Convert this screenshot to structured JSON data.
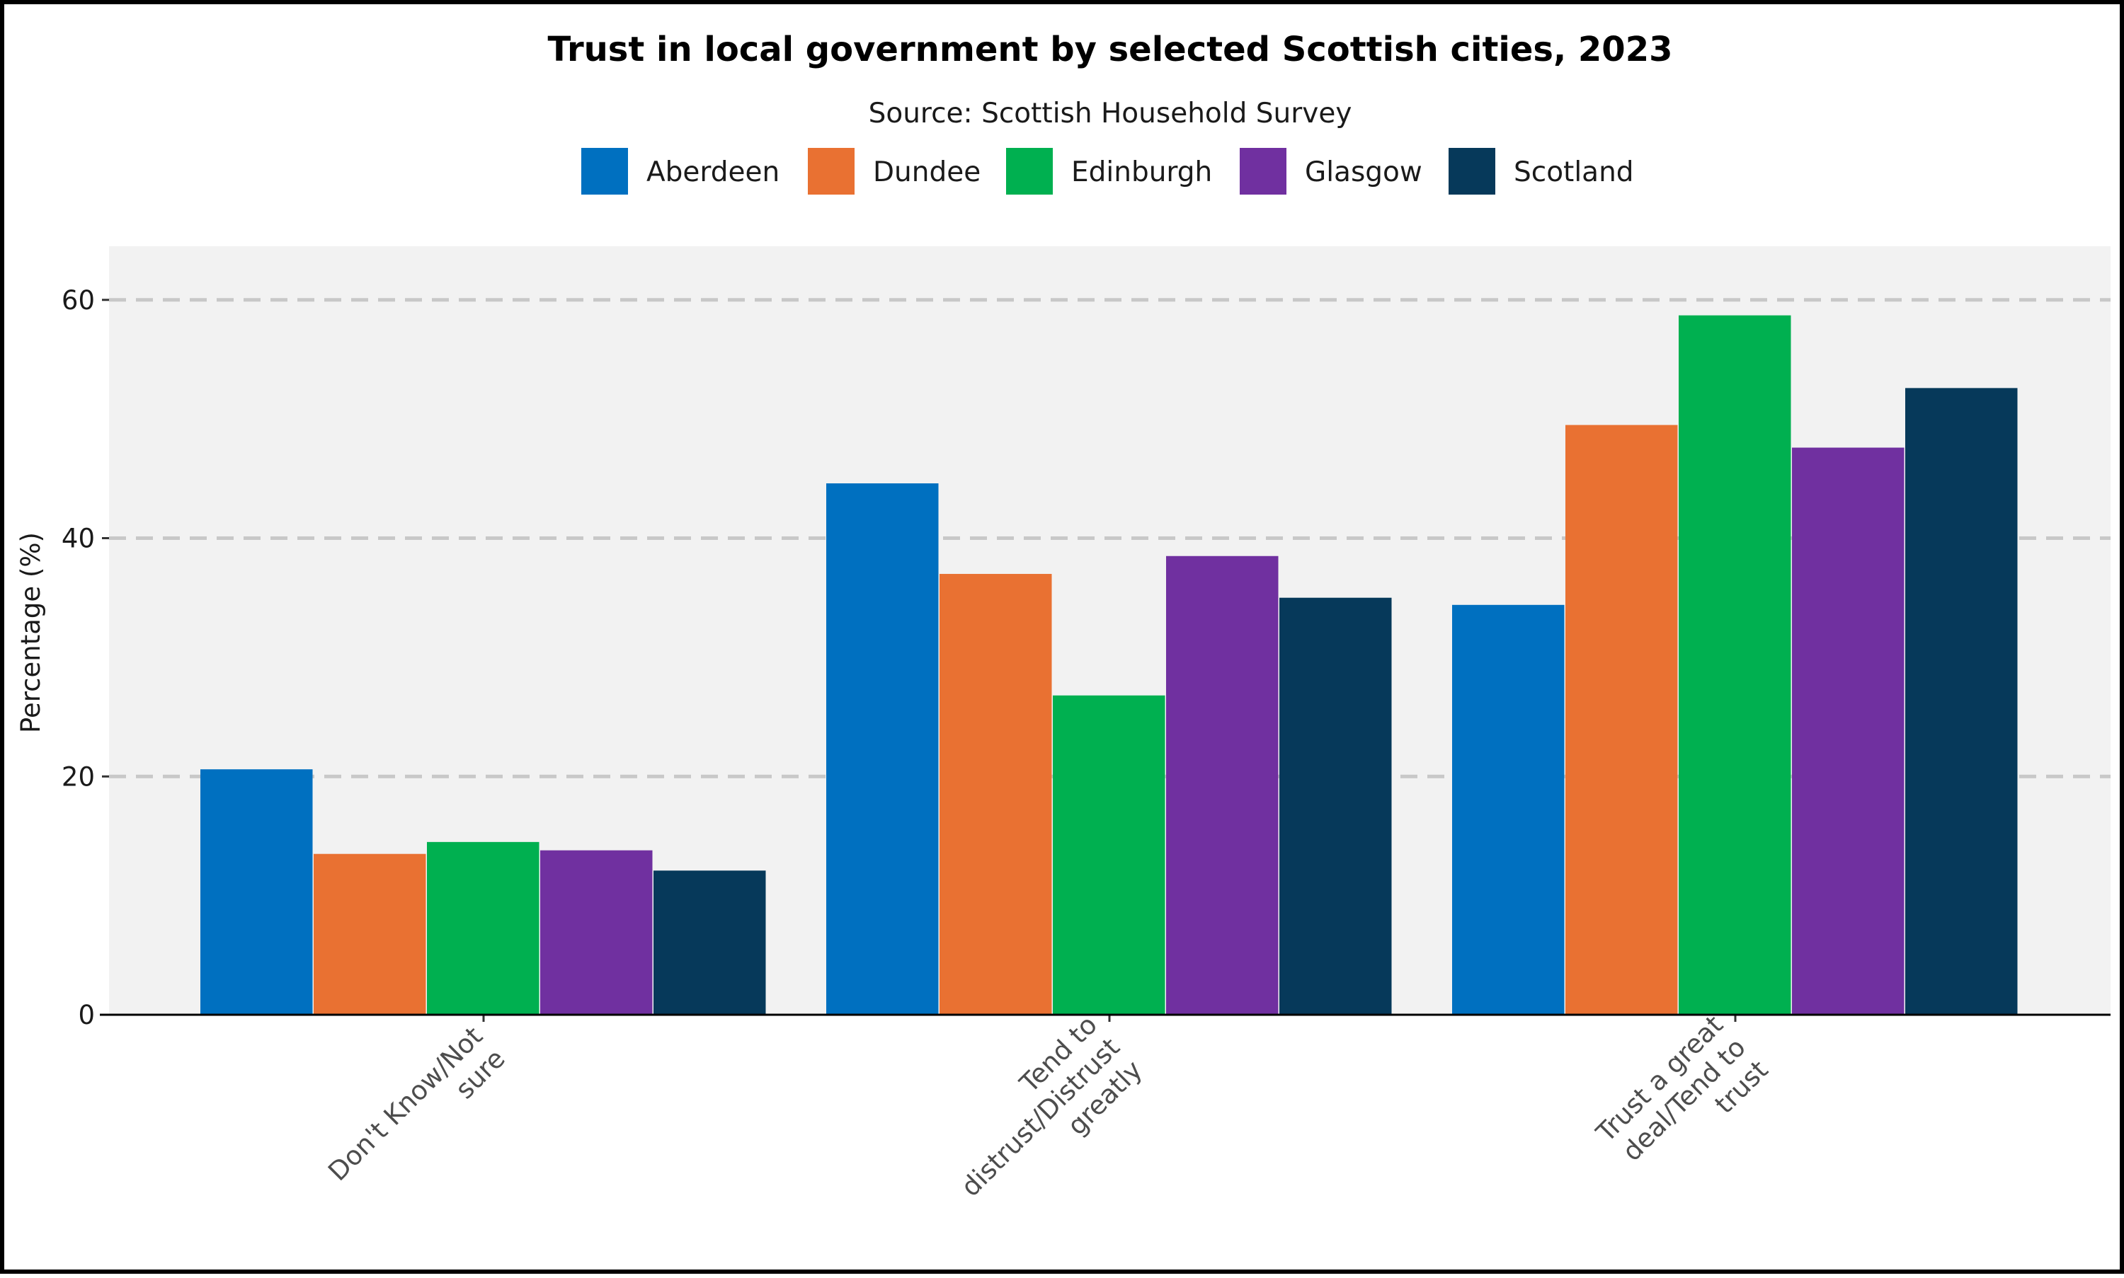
{
  "chart_data": {
    "type": "bar",
    "title": "Trust in local government by selected Scottish cities, 2023",
    "subtitle": "Source: Scottish Household Survey",
    "xlabel": "",
    "ylabel": "Percentage (%)",
    "ylim": [
      0,
      64.5
    ],
    "yticks": [
      0,
      20,
      40,
      60
    ],
    "grid": "horizontal dashed",
    "legend_position": "top",
    "categories": [
      [
        "Don't Know/Not",
        "sure"
      ],
      [
        "Tend to",
        "distrust/Distrust",
        "greatly"
      ],
      [
        "Trust a great",
        "deal/Tend to",
        "trust"
      ]
    ],
    "series": [
      {
        "name": "Aberdeen",
        "color": "#0070C0",
        "values": [
          20.6,
          44.6,
          34.4
        ]
      },
      {
        "name": "Dundee",
        "color": "#E97132",
        "values": [
          13.5,
          37.0,
          49.5
        ]
      },
      {
        "name": "Edinburgh",
        "color": "#00B050",
        "values": [
          14.5,
          26.8,
          58.7
        ]
      },
      {
        "name": "Glasgow",
        "color": "#7030A0",
        "values": [
          13.8,
          38.5,
          47.6
        ]
      },
      {
        "name": "Scotland",
        "color": "#06395A",
        "values": [
          12.1,
          35.0,
          52.6
        ]
      }
    ]
  }
}
